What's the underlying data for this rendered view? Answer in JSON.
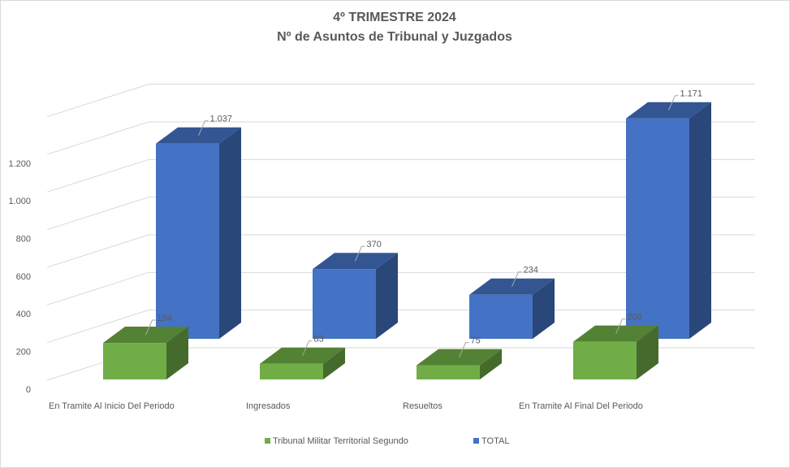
{
  "chart_data": {
    "type": "bar3d",
    "title": "4º TRIMESTRE 2024",
    "subtitle": "Nº de Asuntos de Tribunal y Juzgados",
    "categories": [
      "En Tramite Al Inicio Del Periodo",
      "Ingresados",
      "Resueltos",
      "En Tramite Al Final Del Periodo"
    ],
    "series": [
      {
        "name": "Tribunal Militar Territorial Segundo",
        "color": "#70ad47",
        "values": [
          194,
          83,
          75,
          200
        ]
      },
      {
        "name": "TOTAL",
        "color": "#4472c4",
        "values": [
          1037,
          370,
          234,
          1171
        ],
        "value_labels": [
          "1.037",
          "370",
          "234",
          "1.171"
        ]
      }
    ],
    "ylim": [
      0,
      1400
    ],
    "yticks": [
      0,
      200,
      400,
      600,
      800,
      {
        "value": 1000,
        "label": "1.000"
      },
      {
        "value": 1200,
        "label": "1.200"
      }
    ],
    "grid": true,
    "legend": "bottom"
  }
}
